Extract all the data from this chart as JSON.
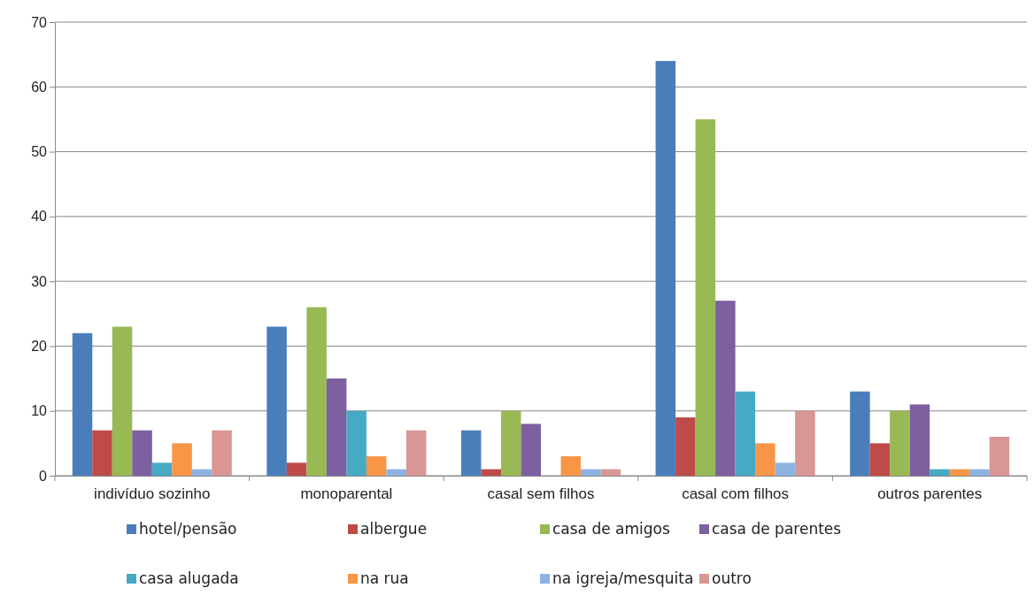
{
  "chart_data": {
    "type": "bar",
    "categories": [
      "indivíduo sozinho",
      "monoparental",
      "casal sem filhos",
      "casal com filhos",
      "outros parentes"
    ],
    "series": [
      {
        "name": "hotel/pensão",
        "color": "#4a7ebb",
        "values": [
          22,
          23,
          7,
          64,
          13
        ]
      },
      {
        "name": "albergue",
        "color": "#be4b48",
        "values": [
          7,
          2,
          1,
          9,
          5
        ]
      },
      {
        "name": "casa de amigos",
        "color": "#98b954",
        "values": [
          23,
          26,
          10,
          55,
          10
        ]
      },
      {
        "name": "casa de parentes",
        "color": "#7d60a0",
        "values": [
          7,
          15,
          8,
          27,
          11
        ]
      },
      {
        "name": "casa alugada",
        "color": "#46aac5",
        "values": [
          2,
          10,
          0,
          13,
          1
        ]
      },
      {
        "name": "na rua",
        "color": "#f79646",
        "values": [
          5,
          3,
          3,
          5,
          1
        ]
      },
      {
        "name": "na igreja/mesquita",
        "color": "#8db3e2",
        "values": [
          1,
          1,
          1,
          2,
          1
        ]
      },
      {
        "name": "outro",
        "color": "#d99694",
        "values": [
          7,
          7,
          1,
          10,
          6
        ]
      }
    ],
    "ylim": [
      0,
      70
    ],
    "yticks": [
      0,
      10,
      20,
      30,
      40,
      50,
      60,
      70
    ],
    "grid": "y",
    "legend": "bottom"
  }
}
